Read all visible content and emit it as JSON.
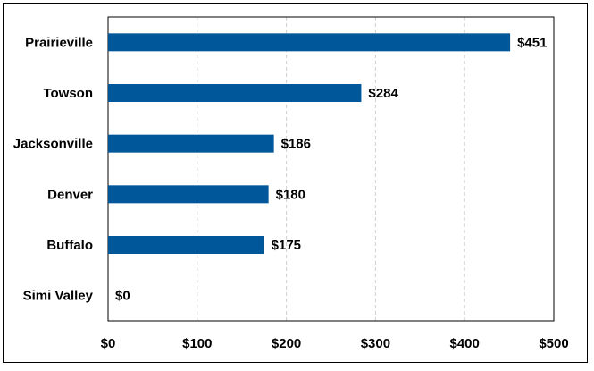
{
  "chart_data": {
    "type": "bar",
    "orientation": "horizontal",
    "categories": [
      "Prairieville",
      "Towson",
      "Jacksonville",
      "Denver",
      "Buffalo",
      "Simi Valley"
    ],
    "values": [
      451,
      284,
      186,
      180,
      175,
      0
    ],
    "value_labels": [
      "$451",
      "$284",
      "$186",
      "$180",
      "$175",
      "$0"
    ],
    "x_ticks": [
      0,
      100,
      200,
      300,
      400,
      500
    ],
    "x_tick_labels": [
      "$0",
      "$100",
      "$200",
      "$300",
      "$400",
      "$500"
    ],
    "xlim": [
      0,
      500
    ],
    "title": "",
    "xlabel": "",
    "ylabel": "",
    "grid": "vertical dashed",
    "legend": "none",
    "colors": {
      "bar": "#00589b",
      "grid": "#d0d0d0",
      "axis": "#000000"
    }
  }
}
